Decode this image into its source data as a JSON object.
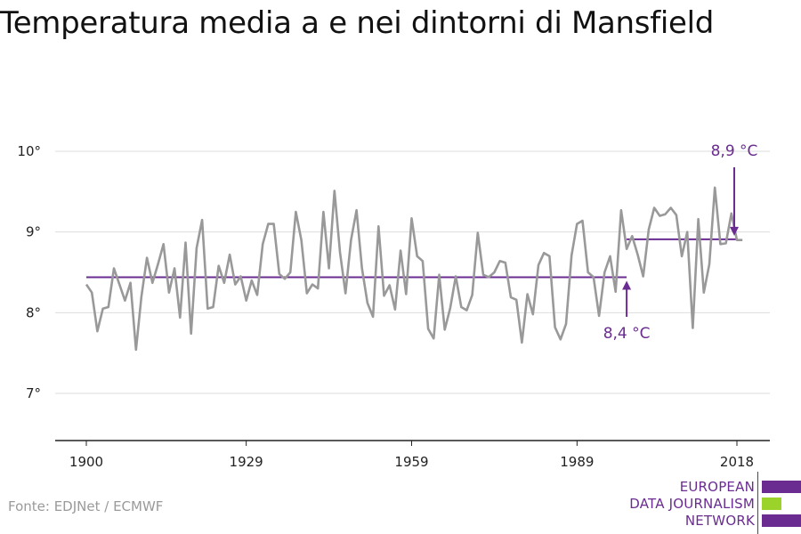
{
  "title": "Temperatura media a e nei dintorni di Mansfield",
  "source": "Fonte: EDJNet / ECMWF",
  "logo": {
    "lines": [
      "EUROPEAN",
      "DATA JOURNALISM",
      "NETWORK"
    ],
    "colors": {
      "purple": "#6a2c91",
      "green": "#9bd32a"
    }
  },
  "colors": {
    "series": "#999999",
    "mean": "#6a2c91",
    "grid": "#dddddd",
    "axis": "#222222",
    "tick_text": "#222222"
  },
  "chart_data": {
    "type": "line",
    "title": "Temperatura media a e nei dintorni di Mansfield",
    "xlabel": "",
    "ylabel": "",
    "xlim": [
      1900,
      2019
    ],
    "ylim": [
      6.5,
      10.5
    ],
    "grid": true,
    "x_ticks": [
      1900,
      1929,
      1959,
      1989,
      2018
    ],
    "y_ticks": [
      7,
      8,
      9,
      10
    ],
    "y_tick_labels": [
      "7°",
      "8°",
      "9°",
      "10°"
    ],
    "series": [
      {
        "x": [
          1900,
          1901,
          1902,
          1903,
          1904,
          1905,
          1906,
          1907,
          1908,
          1909,
          1910,
          1911,
          1912,
          1913,
          1914,
          1915,
          1916,
          1917,
          1918,
          1919,
          1920,
          1921,
          1922,
          1923,
          1924,
          1925,
          1926,
          1927,
          1928,
          1929,
          1930,
          1931,
          1932,
          1933,
          1934,
          1935,
          1936,
          1937,
          1938,
          1939,
          1940,
          1941,
          1942,
          1943,
          1944,
          1945,
          1946,
          1947,
          1948,
          1949,
          1950,
          1951,
          1952,
          1953,
          1954,
          1955,
          1956,
          1957,
          1958,
          1959,
          1960,
          1961,
          1962,
          1963,
          1964,
          1965,
          1966,
          1967,
          1968,
          1969,
          1970,
          1971,
          1972,
          1973,
          1974,
          1975,
          1976,
          1977,
          1978,
          1979,
          1980,
          1981,
          1982,
          1983,
          1984,
          1985,
          1986,
          1987,
          1988,
          1989,
          1990,
          1991,
          1992,
          1993,
          1994,
          1995,
          1996,
          1997,
          1998,
          1999,
          2000,
          2001,
          2002,
          2003,
          2004,
          2005,
          2006,
          2007,
          2008,
          2009,
          2010,
          2011,
          2012,
          2013,
          2014,
          2015,
          2016,
          2017,
          2018,
          2019
        ],
        "values": [
          8.35,
          8.25,
          7.77,
          8.05,
          8.07,
          8.55,
          8.35,
          8.15,
          8.37,
          7.54,
          8.2,
          8.68,
          8.37,
          8.6,
          8.85,
          8.25,
          8.55,
          7.94,
          8.87,
          7.74,
          8.8,
          9.15,
          8.05,
          8.07,
          8.58,
          8.37,
          8.72,
          8.35,
          8.45,
          8.15,
          8.4,
          8.22,
          8.85,
          9.1,
          9.1,
          8.48,
          8.42,
          8.5,
          9.25,
          8.9,
          8.24,
          8.35,
          8.3,
          9.25,
          8.55,
          9.51,
          8.75,
          8.24,
          8.9,
          9.27,
          8.55,
          8.12,
          7.95,
          9.07,
          8.21,
          8.34,
          8.04,
          8.77,
          8.23,
          9.17,
          8.7,
          8.64,
          7.8,
          7.68,
          8.47,
          7.79,
          8.06,
          8.45,
          8.07,
          8.03,
          8.22,
          8.99,
          8.47,
          8.44,
          8.5,
          8.64,
          8.62,
          8.19,
          8.16,
          7.63,
          8.23,
          7.98,
          8.59,
          8.74,
          8.7,
          7.82,
          7.67,
          7.86,
          8.71,
          9.1,
          9.14,
          8.5,
          8.44,
          7.96,
          8.5,
          8.7,
          8.26,
          9.27,
          8.79,
          8.95,
          8.72,
          8.45,
          9.03,
          9.3,
          9.2,
          9.22,
          9.3,
          9.21,
          8.7,
          9.0,
          7.81,
          9.16,
          8.25,
          8.6,
          9.55,
          8.85,
          8.86,
          9.23,
          8.9,
          8.9
        ]
      }
    ],
    "reference_lines": [
      {
        "label": "8,4 °C",
        "value": 8.44,
        "x_start": 1900,
        "x_end": 1998,
        "annotation_year": 1998
      },
      {
        "label": "8,9 °C",
        "value": 8.91,
        "x_start": 1998,
        "x_end": 2018,
        "annotation_year": 2018
      }
    ]
  }
}
